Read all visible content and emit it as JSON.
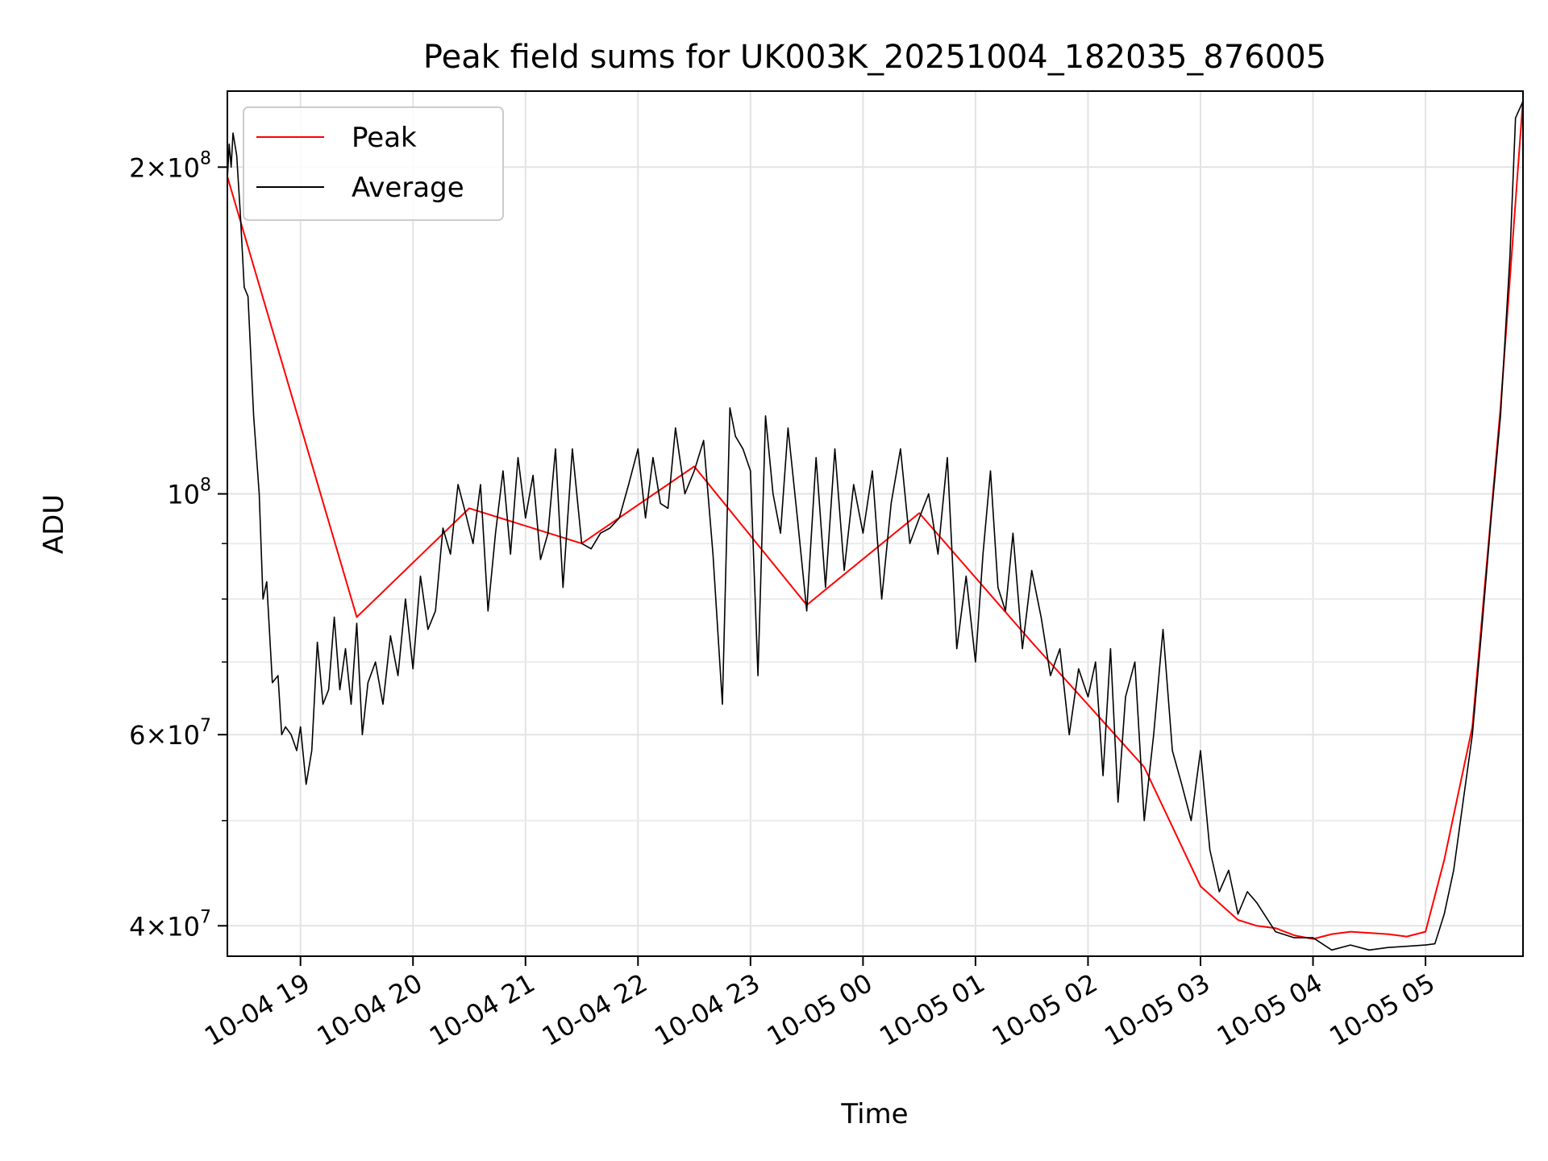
{
  "chart_data": {
    "type": "line",
    "title": "Peak field sums for UK003K_20251004_182035_876005",
    "xlabel": "Time",
    "ylabel": "ADU",
    "yscale": "log",
    "ylim": [
      37500000,
      235000000
    ],
    "xlim": [
      "2025-10-04 18:21",
      "2025-10-05 05:52"
    ],
    "grid": true,
    "legend": {
      "placement": "top-left",
      "entries": [
        "Peak",
        "Average"
      ]
    },
    "x_ticks": [
      {
        "t": "2025-10-04 19:00",
        "label": "10-04 19"
      },
      {
        "t": "2025-10-04 20:00",
        "label": "10-04 20"
      },
      {
        "t": "2025-10-04 21:00",
        "label": "10-04 21"
      },
      {
        "t": "2025-10-04 22:00",
        "label": "10-04 22"
      },
      {
        "t": "2025-10-04 23:00",
        "label": "10-04 23"
      },
      {
        "t": "2025-10-05 00:00",
        "label": "10-05 00"
      },
      {
        "t": "2025-10-05 01:00",
        "label": "10-05 01"
      },
      {
        "t": "2025-10-05 02:00",
        "label": "10-05 02"
      },
      {
        "t": "2025-10-05 03:00",
        "label": "10-05 03"
      },
      {
        "t": "2025-10-05 04:00",
        "label": "10-05 04"
      },
      {
        "t": "2025-10-05 05:00",
        "label": "10-05 05"
      }
    ],
    "y_ticks": [
      {
        "value": 40000000,
        "mantissa": "4",
        "exp": "7"
      },
      {
        "value": 60000000,
        "mantissa": "6",
        "exp": "7"
      },
      {
        "value": 100000000,
        "mantissa": "",
        "exp": "8"
      },
      {
        "value": 200000000,
        "mantissa": "2",
        "exp": "8"
      }
    ],
    "y_minor_ticks": [
      50000000,
      70000000,
      80000000,
      90000000
    ],
    "colors": {
      "Peak": "#ff0000",
      "Average": "#000000"
    },
    "series": [
      {
        "name": "Average",
        "x": [
          "2025-10-04 18:21",
          "2025-10-04 18:22",
          "2025-10-04 18:23",
          "2025-10-04 18:24",
          "2025-10-04 18:26",
          "2025-10-04 18:28",
          "2025-10-04 18:30",
          "2025-10-04 18:32",
          "2025-10-04 18:35",
          "2025-10-04 18:38",
          "2025-10-04 18:40",
          "2025-10-04 18:42",
          "2025-10-04 18:45",
          "2025-10-04 18:48",
          "2025-10-04 18:50",
          "2025-10-04 18:52",
          "2025-10-04 18:55",
          "2025-10-04 18:58",
          "2025-10-04 19:00",
          "2025-10-04 19:03",
          "2025-10-04 19:06",
          "2025-10-04 19:09",
          "2025-10-04 19:12",
          "2025-10-04 19:15",
          "2025-10-04 19:18",
          "2025-10-04 19:21",
          "2025-10-04 19:24",
          "2025-10-04 19:27",
          "2025-10-04 19:30",
          "2025-10-04 19:33",
          "2025-10-04 19:36",
          "2025-10-04 19:40",
          "2025-10-04 19:44",
          "2025-10-04 19:48",
          "2025-10-04 19:52",
          "2025-10-04 19:56",
          "2025-10-04 20:00",
          "2025-10-04 20:04",
          "2025-10-04 20:08",
          "2025-10-04 20:12",
          "2025-10-04 20:16",
          "2025-10-04 20:20",
          "2025-10-04 20:24",
          "2025-10-04 20:28",
          "2025-10-04 20:32",
          "2025-10-04 20:36",
          "2025-10-04 20:40",
          "2025-10-04 20:44",
          "2025-10-04 20:48",
          "2025-10-04 20:52",
          "2025-10-04 20:56",
          "2025-10-04 21:00",
          "2025-10-04 21:04",
          "2025-10-04 21:08",
          "2025-10-04 21:12",
          "2025-10-04 21:16",
          "2025-10-04 21:20",
          "2025-10-04 21:25",
          "2025-10-04 21:30",
          "2025-10-04 21:35",
          "2025-10-04 21:40",
          "2025-10-04 21:45",
          "2025-10-04 21:50",
          "2025-10-04 21:55",
          "2025-10-04 22:00",
          "2025-10-04 22:04",
          "2025-10-04 22:08",
          "2025-10-04 22:12",
          "2025-10-04 22:16",
          "2025-10-04 22:20",
          "2025-10-04 22:25",
          "2025-10-04 22:30",
          "2025-10-04 22:35",
          "2025-10-04 22:40",
          "2025-10-04 22:45",
          "2025-10-04 22:49",
          "2025-10-04 22:52",
          "2025-10-04 22:56",
          "2025-10-04 23:00",
          "2025-10-04 23:04",
          "2025-10-04 23:08",
          "2025-10-04 23:12",
          "2025-10-04 23:16",
          "2025-10-04 23:20",
          "2025-10-04 23:25",
          "2025-10-04 23:30",
          "2025-10-04 23:35",
          "2025-10-04 23:40",
          "2025-10-04 23:45",
          "2025-10-04 23:50",
          "2025-10-04 23:55",
          "2025-10-05 00:00",
          "2025-10-05 00:05",
          "2025-10-05 00:10",
          "2025-10-05 00:15",
          "2025-10-05 00:20",
          "2025-10-05 00:25",
          "2025-10-05 00:30",
          "2025-10-05 00:35",
          "2025-10-05 00:40",
          "2025-10-05 00:45",
          "2025-10-05 00:50",
          "2025-10-05 00:55",
          "2025-10-05 01:00",
          "2025-10-05 01:04",
          "2025-10-05 01:08",
          "2025-10-05 01:12",
          "2025-10-05 01:16",
          "2025-10-05 01:20",
          "2025-10-05 01:25",
          "2025-10-05 01:30",
          "2025-10-05 01:35",
          "2025-10-05 01:40",
          "2025-10-05 01:45",
          "2025-10-05 01:50",
          "2025-10-05 01:55",
          "2025-10-05 02:00",
          "2025-10-05 02:04",
          "2025-10-05 02:08",
          "2025-10-05 02:12",
          "2025-10-05 02:16",
          "2025-10-05 02:20",
          "2025-10-05 02:25",
          "2025-10-05 02:30",
          "2025-10-05 02:35",
          "2025-10-05 02:40",
          "2025-10-05 02:45",
          "2025-10-05 02:50",
          "2025-10-05 02:55",
          "2025-10-05 03:00",
          "2025-10-05 03:05",
          "2025-10-05 03:10",
          "2025-10-05 03:15",
          "2025-10-05 03:20",
          "2025-10-05 03:25",
          "2025-10-05 03:30",
          "2025-10-05 03:40",
          "2025-10-05 03:50",
          "2025-10-05 04:00",
          "2025-10-05 04:10",
          "2025-10-05 04:20",
          "2025-10-05 04:30",
          "2025-10-05 04:40",
          "2025-10-05 04:50",
          "2025-10-05 05:00",
          "2025-10-05 05:05",
          "2025-10-05 05:10",
          "2025-10-05 05:15",
          "2025-10-05 05:20",
          "2025-10-05 05:25",
          "2025-10-05 05:30",
          "2025-10-05 05:35",
          "2025-10-05 05:40",
          "2025-10-05 05:45",
          "2025-10-05 05:48",
          "2025-10-05 05:52"
        ],
        "values": [
          195000000,
          210000000,
          200000000,
          215000000,
          205000000,
          180000000,
          155000000,
          152000000,
          118000000,
          100000000,
          80000000,
          83000000,
          67000000,
          68000000,
          60000000,
          61000000,
          60000000,
          58000000,
          61000000,
          54000000,
          58000000,
          73000000,
          64000000,
          66000000,
          77000000,
          66000000,
          72000000,
          64000000,
          76000000,
          60000000,
          67000000,
          70000000,
          64000000,
          74000000,
          68000000,
          80000000,
          69000000,
          84000000,
          75000000,
          78000000,
          93000000,
          88000000,
          102000000,
          96000000,
          90000000,
          102000000,
          78000000,
          92000000,
          105000000,
          88000000,
          108000000,
          95000000,
          104000000,
          87000000,
          92000000,
          110000000,
          82000000,
          110000000,
          90000000,
          89000000,
          92000000,
          93000000,
          95000000,
          102000000,
          110000000,
          95000000,
          108000000,
          98000000,
          97000000,
          115000000,
          100000000,
          105000000,
          112000000,
          88000000,
          64000000,
          120000000,
          113000000,
          110000000,
          105000000,
          68000000,
          118000000,
          100000000,
          92000000,
          115000000,
          95000000,
          78000000,
          108000000,
          82000000,
          110000000,
          85000000,
          102000000,
          92000000,
          105000000,
          80000000,
          98000000,
          110000000,
          90000000,
          95000000,
          100000000,
          88000000,
          108000000,
          72000000,
          84000000,
          70000000,
          88000000,
          105000000,
          82000000,
          78000000,
          92000000,
          72000000,
          85000000,
          77000000,
          68000000,
          72000000,
          60000000,
          69000000,
          65000000,
          70000000,
          55000000,
          72000000,
          52000000,
          65000000,
          70000000,
          50000000,
          60000000,
          75000000,
          58000000,
          54000000,
          50000000,
          58000000,
          47000000,
          43000000,
          45000000,
          41000000,
          43000000,
          42000000,
          39500000,
          39000000,
          39000000,
          38000000,
          38400000,
          38000000,
          38200000,
          38300000,
          38400000,
          38500000,
          41000000,
          45000000,
          52000000,
          60000000,
          75000000,
          95000000,
          118000000,
          165000000,
          222000000,
          230000000
        ]
      },
      {
        "name": "Peak",
        "x": [
          "2025-10-04 18:21",
          "2025-10-04 19:30",
          "2025-10-04 20:30",
          "2025-10-04 21:30",
          "2025-10-04 22:30",
          "2025-10-04 23:30",
          "2025-10-05 00:30",
          "2025-10-05 01:30",
          "2025-10-05 02:30",
          "2025-10-05 03:00",
          "2025-10-05 03:20",
          "2025-10-05 03:30",
          "2025-10-05 03:40",
          "2025-10-05 03:50",
          "2025-10-05 04:00",
          "2025-10-05 04:10",
          "2025-10-05 04:20",
          "2025-10-05 04:30",
          "2025-10-05 04:40",
          "2025-10-05 04:50",
          "2025-10-05 05:00",
          "2025-10-05 05:10",
          "2025-10-05 05:25",
          "2025-10-05 05:40",
          "2025-10-05 05:52"
        ],
        "values": [
          196000000,
          77000000,
          97000000,
          90000000,
          106000000,
          79000000,
          96000000,
          73000000,
          56000000,
          43500000,
          40500000,
          40000000,
          39800000,
          39200000,
          38900000,
          39300000,
          39500000,
          39400000,
          39300000,
          39100000,
          39500000,
          46000000,
          61000000,
          120000000,
          231000000
        ]
      }
    ]
  }
}
